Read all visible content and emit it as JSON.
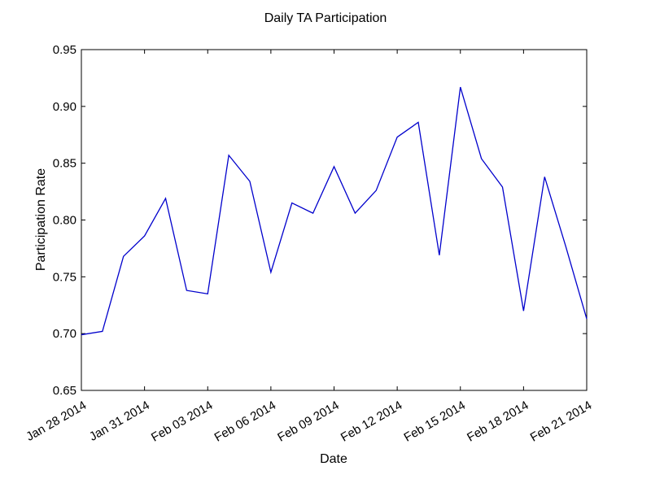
{
  "chart_data": {
    "type": "line",
    "title": "Daily TA Participation",
    "xlabel": "Date",
    "ylabel": "Participation Rate",
    "ylim": [
      0.65,
      0.95
    ],
    "xlim": [
      "2014-01-28",
      "2014-02-21"
    ],
    "grid": false,
    "yticks": [
      0.65,
      0.7,
      0.75,
      0.8,
      0.85,
      0.9,
      0.95
    ],
    "ytick_labels": [
      "0.65",
      "0.70",
      "0.75",
      "0.80",
      "0.85",
      "0.90",
      "0.95"
    ],
    "xticks": [
      "2014-01-28",
      "2014-01-31",
      "2014-02-03",
      "2014-02-06",
      "2014-02-09",
      "2014-02-12",
      "2014-02-15",
      "2014-02-18",
      "2014-02-21"
    ],
    "xtick_labels": [
      "Jan 28 2014",
      "Jan 31 2014",
      "Feb 03 2014",
      "Feb 06 2014",
      "Feb 09 2014",
      "Feb 12 2014",
      "Feb 15 2014",
      "Feb 18 2014",
      "Feb 21 2014"
    ],
    "series": [
      {
        "color": "#0000cc",
        "x": [
          "2014-01-28",
          "2014-01-29",
          "2014-01-30",
          "2014-01-31",
          "2014-02-01",
          "2014-02-02",
          "2014-02-03",
          "2014-02-04",
          "2014-02-05",
          "2014-02-06",
          "2014-02-07",
          "2014-02-08",
          "2014-02-09",
          "2014-02-10",
          "2014-02-11",
          "2014-02-12",
          "2014-02-13",
          "2014-02-14",
          "2014-02-15",
          "2014-02-16",
          "2014-02-17",
          "2014-02-18",
          "2014-02-19",
          "2014-02-20",
          "2014-02-21"
        ],
        "y": [
          0.699,
          0.702,
          0.768,
          0.786,
          0.819,
          0.738,
          0.735,
          0.857,
          0.834,
          0.754,
          0.815,
          0.806,
          0.847,
          0.806,
          0.826,
          0.873,
          0.886,
          0.769,
          0.917,
          0.854,
          0.829,
          0.72,
          0.838,
          0.777,
          0.713
        ]
      }
    ]
  }
}
